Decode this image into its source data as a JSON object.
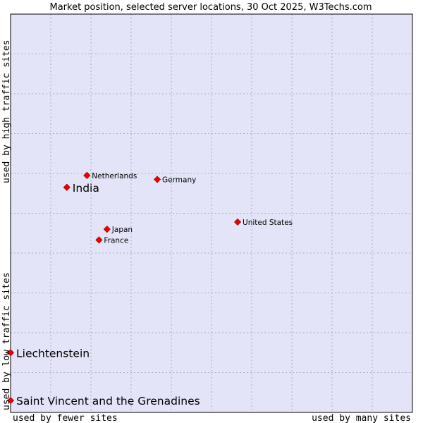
{
  "chart_data": {
    "type": "scatter",
    "title": "Market position, selected server locations, 30 Oct 2025, W3Techs.com",
    "xlabel_left": "used by fewer sites",
    "xlabel_right": "used by many sites",
    "ylabel_bottom": "used by low traffic sites",
    "ylabel_top": "used by high traffic sites",
    "xlim": [
      0,
      100
    ],
    "ylim": [
      0,
      100
    ],
    "grid": true,
    "colors": {
      "plot_background": "#e4e4f8",
      "grid": "#aaaacc",
      "point": "#ee0000",
      "point_outline": "#990000",
      "border": "#000000"
    },
    "points": [
      {
        "label": "Saint Vincent and the Grenadines",
        "x": 0.0,
        "y": 3.0,
        "emphasis": true
      },
      {
        "label": "Liechtenstein",
        "x": 0.0,
        "y": 15.0,
        "emphasis": true
      },
      {
        "label": "India",
        "x": 14.0,
        "y": 56.5,
        "emphasis": true
      },
      {
        "label": "Netherlands",
        "x": 19.0,
        "y": 59.5,
        "emphasis": false
      },
      {
        "label": "Germany",
        "x": 36.5,
        "y": 58.5,
        "emphasis": false
      },
      {
        "label": "Japan",
        "x": 24.0,
        "y": 46.0,
        "emphasis": false
      },
      {
        "label": "France",
        "x": 22.0,
        "y": 43.3,
        "emphasis": false
      },
      {
        "label": "United States",
        "x": 56.5,
        "y": 47.8,
        "emphasis": false
      }
    ]
  }
}
